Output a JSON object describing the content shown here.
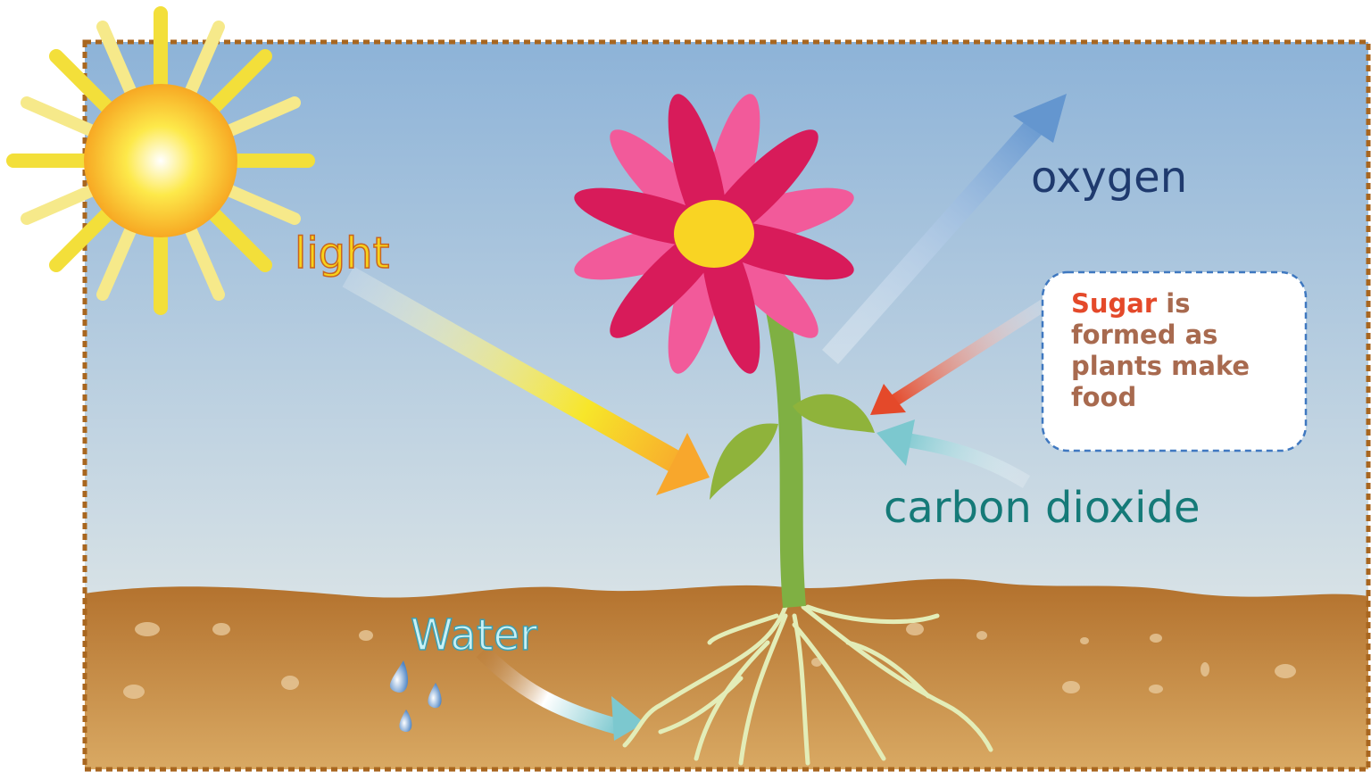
{
  "labels": {
    "light": "light",
    "oxygen": "oxygen",
    "carbon_dioxide": "carbon dioxide",
    "water": "Water"
  },
  "sugar_note": {
    "highlight": "Sugar",
    "lines": [
      "is",
      "formed as",
      "plants make",
      "food"
    ]
  }
}
